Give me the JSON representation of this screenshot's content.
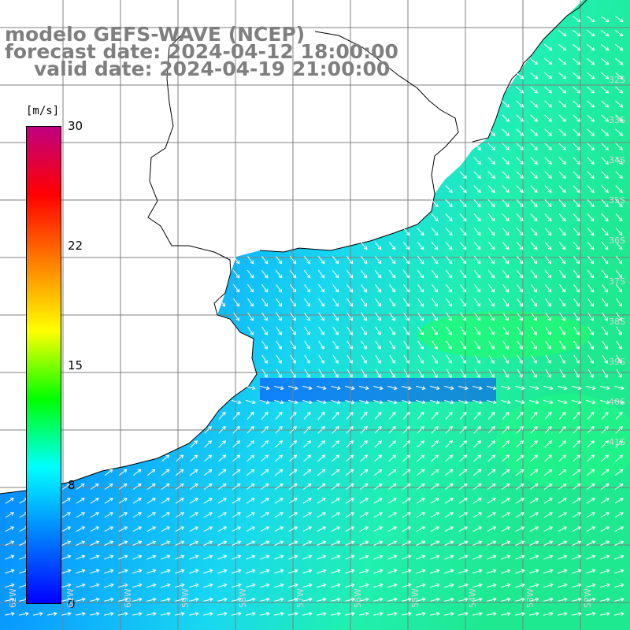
{
  "title": {
    "line1": "modelo GEFS-WAVE (NCEP)",
    "line2": "forecast date: 2024-04-12 18:00:00",
    "line3": "valid date: 2024-04-19 21:00:00"
  },
  "colorbar": {
    "units": "[m/s]",
    "ticks": [
      "30",
      "22",
      "15",
      "8",
      "0"
    ],
    "min": 0,
    "max": 30,
    "colors": [
      "#0000ff",
      "#0080ff",
      "#00ffff",
      "#00ff00",
      "#ffff00",
      "#ff8000",
      "#ff0000",
      "#c00080"
    ]
  },
  "map": {
    "grid_step_deg": 5,
    "lat_labels": [
      "32S",
      "33S",
      "34S",
      "35S",
      "36S",
      "37S",
      "38S",
      "39S",
      "40S",
      "41S"
    ],
    "lon_labels": [
      "62W",
      "61W",
      "60W",
      "59W",
      "58W",
      "57W",
      "56W",
      "55W",
      "54W",
      "53W",
      "52W"
    ],
    "land_color": "#ffffff",
    "arrow_color": "#ffffff",
    "coast_color": "#000000",
    "grid_color": "#7f7f7f"
  }
}
